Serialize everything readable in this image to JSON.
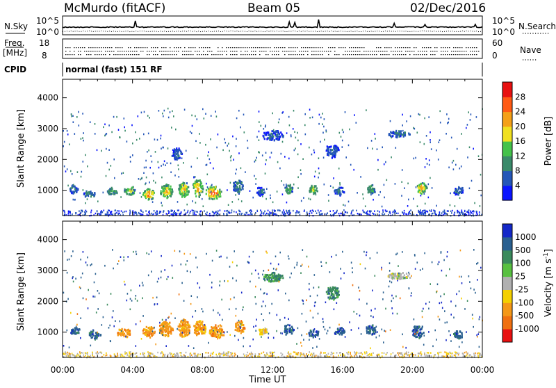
{
  "header": {
    "station": "McMurdo (fitACF)",
    "beam": "Beam 05",
    "date": "02/Dec/2016"
  },
  "left_labels": {
    "nsky": "N.Sky",
    "freq": "Freq.",
    "mhz": "[MHz]",
    "cpid": "CPID"
  },
  "right_labels": {
    "nsearch": "N.Search",
    "nave": "Nave"
  },
  "noise_panel": {
    "left_ticks": [
      "10^5",
      "10^0"
    ],
    "right_ticks": [
      "10^5",
      "10^0"
    ]
  },
  "freq_panel": {
    "left_ticks": [
      "18",
      "8"
    ],
    "right_ticks": [
      "60",
      "0"
    ]
  },
  "cpid_text": "normal (fast) 151 RF",
  "chart_data": [
    {
      "type": "heatmap",
      "title": "Power",
      "ylabel": "Slant Range [km]",
      "xlabel": "Time UT",
      "xlim_hours": [
        0,
        24
      ],
      "ylim": [
        180,
        4600
      ],
      "y_ticks": [
        "1000",
        "2000",
        "3000",
        "4000"
      ],
      "x_ticks": [
        "00:00",
        "04:00",
        "08:00",
        "12:00",
        "16:00",
        "20:00",
        "00:00"
      ],
      "colorbar": {
        "label": "Power [dB]",
        "ticks": [
          "4",
          "8",
          "12",
          "16",
          "20",
          "24",
          "28"
        ],
        "range": [
          0,
          30
        ],
        "colors": [
          "#0a14ff",
          "#2456b8",
          "#3a8a6a",
          "#44c24a",
          "#f0e020",
          "#f4a018",
          "#ff5a14",
          "#e81010"
        ]
      },
      "features": [
        {
          "t": 0.6,
          "r": 1050,
          "dt": 0.5,
          "dr": 250,
          "v": 10
        },
        {
          "t": 1.5,
          "r": 900,
          "dt": 0.7,
          "dr": 200,
          "v": 12
        },
        {
          "t": 2.8,
          "r": 1000,
          "dt": 0.6,
          "dr": 250,
          "v": 14
        },
        {
          "t": 3.8,
          "r": 1000,
          "dt": 0.6,
          "dr": 300,
          "v": 20
        },
        {
          "t": 4.9,
          "r": 900,
          "dt": 0.7,
          "dr": 350,
          "v": 26
        },
        {
          "t": 5.9,
          "r": 1000,
          "dt": 0.7,
          "dr": 450,
          "v": 24
        },
        {
          "t": 6.9,
          "r": 1050,
          "dt": 0.6,
          "dr": 500,
          "v": 22
        },
        {
          "t": 7.7,
          "r": 1100,
          "dt": 0.6,
          "dr": 550,
          "v": 24
        },
        {
          "t": 8.6,
          "r": 950,
          "dt": 0.9,
          "dr": 400,
          "v": 28
        },
        {
          "t": 10.0,
          "r": 1150,
          "dt": 0.6,
          "dr": 400,
          "v": 12
        },
        {
          "t": 11.3,
          "r": 1000,
          "dt": 0.5,
          "dr": 250,
          "v": 10
        },
        {
          "t": 12.9,
          "r": 1050,
          "dt": 0.5,
          "dr": 300,
          "v": 16
        },
        {
          "t": 14.3,
          "r": 1050,
          "dt": 0.5,
          "dr": 300,
          "v": 20
        },
        {
          "t": 15.8,
          "r": 1000,
          "dt": 0.6,
          "dr": 250,
          "v": 10
        },
        {
          "t": 17.6,
          "r": 1050,
          "dt": 0.5,
          "dr": 300,
          "v": 14
        },
        {
          "t": 20.5,
          "r": 1100,
          "dt": 0.6,
          "dr": 350,
          "v": 24
        },
        {
          "t": 22.6,
          "r": 1000,
          "dt": 0.6,
          "dr": 250,
          "v": 10
        },
        {
          "t": 19.2,
          "r": 2850,
          "dt": 1.3,
          "dr": 200,
          "v": 10
        },
        {
          "t": 12.0,
          "r": 2800,
          "dt": 1.2,
          "dr": 300,
          "v": 8
        },
        {
          "t": 6.5,
          "r": 2200,
          "dt": 0.6,
          "dr": 400,
          "v": 8
        },
        {
          "t": 15.4,
          "r": 2300,
          "dt": 0.8,
          "dr": 400,
          "v": 8
        }
      ]
    },
    {
      "type": "heatmap",
      "title": "Velocity",
      "ylabel": "Slant Range [km]",
      "xlabel": "Time UT",
      "xlim_hours": [
        0,
        24
      ],
      "ylim": [
        180,
        4600
      ],
      "y_ticks": [
        "1000",
        "2000",
        "3000",
        "4000"
      ],
      "x_ticks": [
        "00:00",
        "04:00",
        "08:00",
        "12:00",
        "16:00",
        "20:00",
        "00:00"
      ],
      "colorbar": {
        "label": "Velocity [m s",
        "label_sup": "-1",
        "label_end": "]",
        "ticks": [
          "1000",
          "500",
          "100",
          "25",
          "-25",
          "-100",
          "-500",
          "-1000"
        ],
        "colors": [
          "#1428c8",
          "#2a6090",
          "#3a8a5c",
          "#58c040",
          "#b0b0b0",
          "#f4d000",
          "#f49818",
          "#f07010",
          "#e81010"
        ]
      },
      "features": [
        {
          "t": 0.7,
          "r": 1050,
          "dt": 0.6,
          "dr": 250,
          "v": 1
        },
        {
          "t": 1.8,
          "r": 950,
          "dt": 0.7,
          "dr": 250,
          "v": 1
        },
        {
          "t": 3.5,
          "r": 1000,
          "dt": 0.8,
          "dr": 250,
          "v": 6
        },
        {
          "t": 4.9,
          "r": 1050,
          "dt": 0.7,
          "dr": 350,
          "v": 6
        },
        {
          "t": 5.9,
          "r": 1150,
          "dt": 0.8,
          "dr": 500,
          "v": 6
        },
        {
          "t": 6.9,
          "r": 1150,
          "dt": 0.7,
          "dr": 550,
          "v": 6
        },
        {
          "t": 7.8,
          "r": 1150,
          "dt": 0.7,
          "dr": 500,
          "v": 6
        },
        {
          "t": 8.8,
          "r": 1050,
          "dt": 0.9,
          "dr": 400,
          "v": 6
        },
        {
          "t": 10.1,
          "r": 1200,
          "dt": 0.6,
          "dr": 400,
          "v": 6
        },
        {
          "t": 11.4,
          "r": 1050,
          "dt": 0.5,
          "dr": 250,
          "v": 5
        },
        {
          "t": 12.9,
          "r": 1100,
          "dt": 0.6,
          "dr": 300,
          "v": 1
        },
        {
          "t": 14.3,
          "r": 1000,
          "dt": 0.6,
          "dr": 250,
          "v": 1
        },
        {
          "t": 15.8,
          "r": 1050,
          "dt": 0.6,
          "dr": 250,
          "v": 1
        },
        {
          "t": 17.6,
          "r": 1100,
          "dt": 0.6,
          "dr": 300,
          "v": 1
        },
        {
          "t": 20.3,
          "r": 1050,
          "dt": 0.7,
          "dr": 400,
          "v": 1
        },
        {
          "t": 22.6,
          "r": 950,
          "dt": 0.6,
          "dr": 250,
          "v": 1
        },
        {
          "t": 19.2,
          "r": 2850,
          "dt": 1.3,
          "dr": 200,
          "v": 4
        },
        {
          "t": 12.0,
          "r": 2800,
          "dt": 1.2,
          "dr": 300,
          "v": 2
        },
        {
          "t": 15.4,
          "r": 2300,
          "dt": 0.8,
          "dr": 400,
          "v": 2
        }
      ]
    }
  ]
}
